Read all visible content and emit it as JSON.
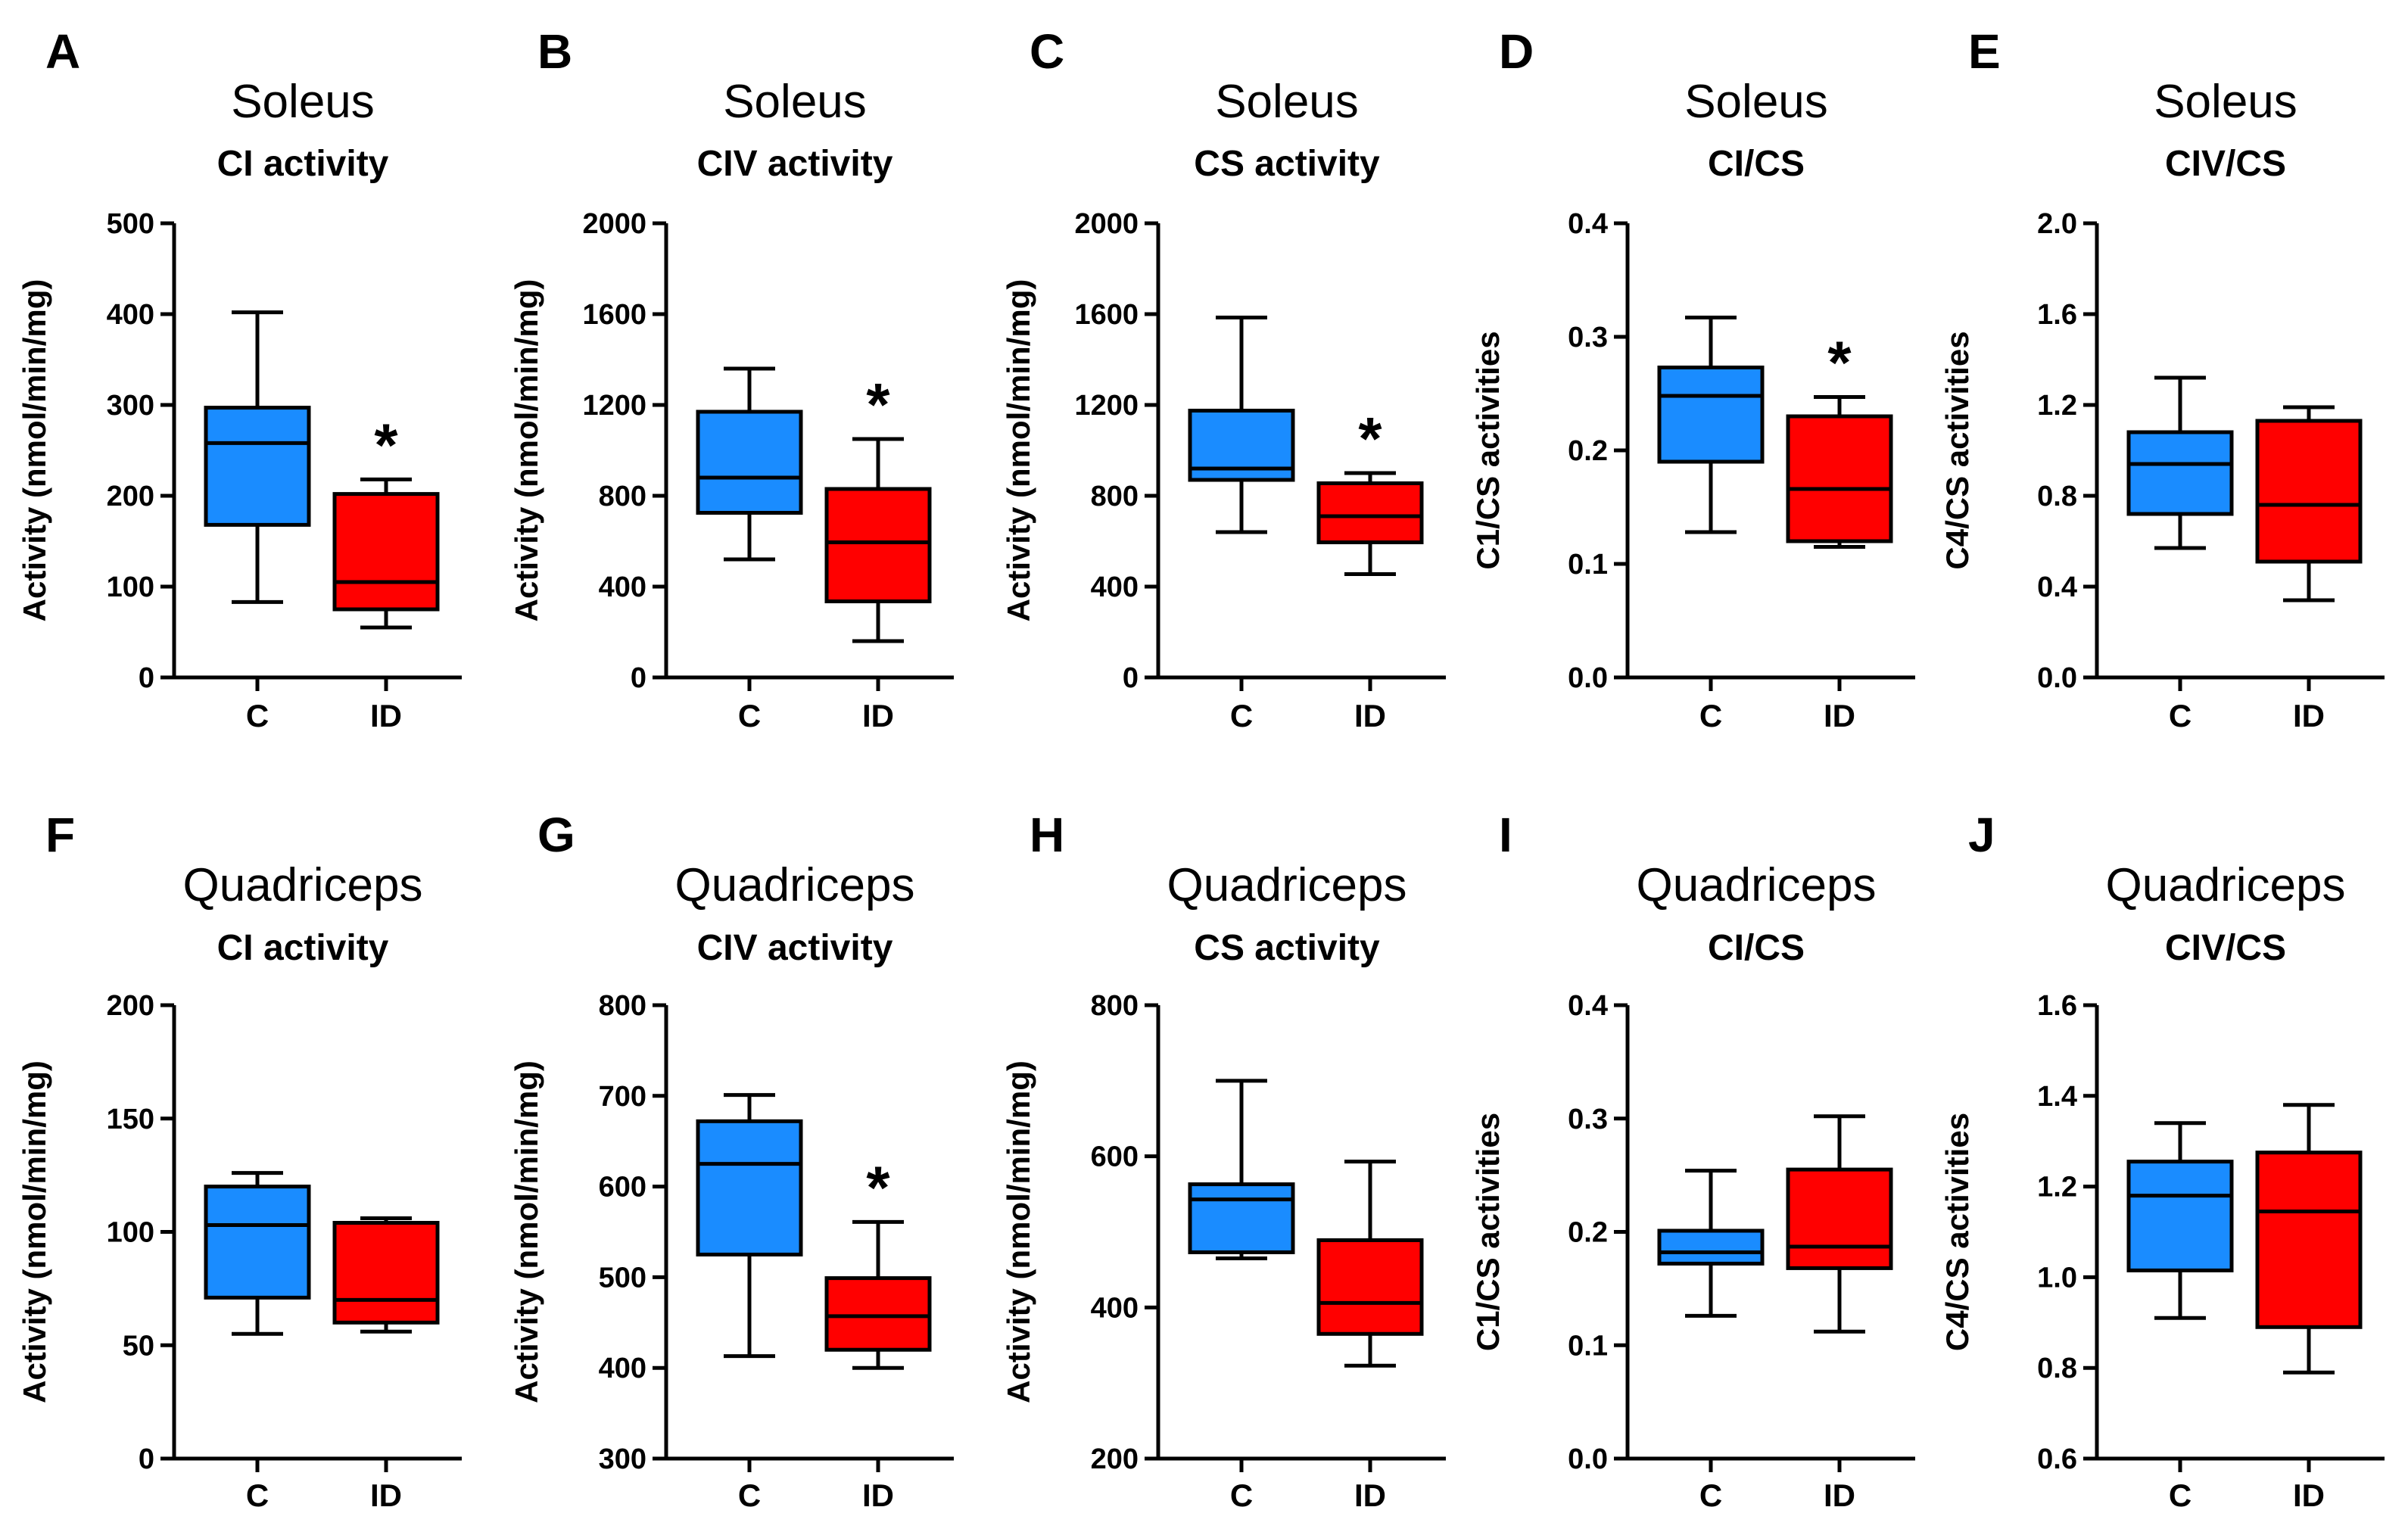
{
  "colors": {
    "C": "#1a8cff",
    "ID": "#ff0000",
    "line": "#000000"
  },
  "chart_data": [
    {
      "type": "box",
      "letter": "A",
      "title": "Soleus",
      "subtitle": "CI activity",
      "ylabel": "Activity (nmol/min/mg)",
      "ylim": [
        0,
        500
      ],
      "yticks": [
        "0",
        "100",
        "200",
        "300",
        "400",
        "500"
      ],
      "categories": [
        "C",
        "ID"
      ],
      "boxes": [
        {
          "min": 83,
          "q1": 168,
          "median": 258,
          "q3": 297,
          "max": 402
        },
        {
          "min": 55,
          "q1": 75,
          "median": 105,
          "q3": 202,
          "max": 218
        }
      ],
      "significance": [
        "",
        "*"
      ]
    },
    {
      "type": "box",
      "letter": "B",
      "title": "Soleus",
      "subtitle": "CIV activity",
      "ylabel": "Activity (nmol/min/mg)",
      "ylim": [
        0,
        2000
      ],
      "yticks": [
        "0",
        "400",
        "800",
        "1200",
        "1600",
        "2000"
      ],
      "categories": [
        "C",
        "ID"
      ],
      "boxes": [
        {
          "min": 520,
          "q1": 725,
          "median": 880,
          "q3": 1170,
          "max": 1360
        },
        {
          "min": 160,
          "q1": 335,
          "median": 595,
          "q3": 830,
          "max": 1050
        }
      ],
      "significance": [
        "",
        "*"
      ]
    },
    {
      "type": "box",
      "letter": "C",
      "title": "Soleus",
      "subtitle": "CS activity",
      "ylabel": "Activity (nmol/min/mg)",
      "ylim": [
        0,
        2000
      ],
      "yticks": [
        "0",
        "400",
        "800",
        "1200",
        "1600",
        "2000"
      ],
      "categories": [
        "C",
        "ID"
      ],
      "boxes": [
        {
          "min": 640,
          "q1": 870,
          "median": 920,
          "q3": 1175,
          "max": 1585
        },
        {
          "min": 455,
          "q1": 595,
          "median": 710,
          "q3": 855,
          "max": 900
        }
      ],
      "significance": [
        "",
        "*"
      ]
    },
    {
      "type": "box",
      "letter": "D",
      "title": "Soleus",
      "subtitle": "CI/CS",
      "ylabel": "C1/CS activities",
      "ylim": [
        0,
        0.4
      ],
      "yticks": [
        "0.0",
        "0.1",
        "0.2",
        "0.3",
        "0.4"
      ],
      "categories": [
        "C",
        "ID"
      ],
      "boxes": [
        {
          "min": 0.128,
          "q1": 0.19,
          "median": 0.248,
          "q3": 0.273,
          "max": 0.317
        },
        {
          "min": 0.115,
          "q1": 0.12,
          "median": 0.166,
          "q3": 0.23,
          "max": 0.247
        }
      ],
      "significance": [
        "",
        "*"
      ]
    },
    {
      "type": "box",
      "letter": "E",
      "title": "Soleus",
      "subtitle": "CIV/CS",
      "ylabel": "C4/CS activities",
      "ylim": [
        0,
        2.0
      ],
      "yticks": [
        "0.0",
        "0.4",
        "0.8",
        "1.2",
        "1.6",
        "2.0"
      ],
      "categories": [
        "C",
        "ID"
      ],
      "boxes": [
        {
          "min": 0.57,
          "q1": 0.72,
          "median": 0.94,
          "q3": 1.08,
          "max": 1.32
        },
        {
          "min": 0.34,
          "q1": 0.51,
          "median": 0.76,
          "q3": 1.13,
          "max": 1.19
        }
      ],
      "significance": [
        "",
        ""
      ]
    },
    {
      "type": "box",
      "letter": "F",
      "title": "Quadriceps",
      "subtitle": "CI activity",
      "ylabel": "Activity (nmol/min/mg)",
      "ylim": [
        0,
        200
      ],
      "yticks": [
        "0",
        "50",
        "100",
        "150",
        "200"
      ],
      "categories": [
        "C",
        "ID"
      ],
      "boxes": [
        {
          "min": 55,
          "q1": 71,
          "median": 103,
          "q3": 120,
          "max": 126
        },
        {
          "min": 56,
          "q1": 60,
          "median": 70,
          "q3": 104,
          "max": 106
        }
      ],
      "significance": [
        "",
        ""
      ]
    },
    {
      "type": "box",
      "letter": "G",
      "title": "Quadriceps",
      "subtitle": "CIV activity",
      "ylabel": "Activity (nmol/min/mg)",
      "ylim": [
        300,
        800
      ],
      "yticks": [
        "300",
        "400",
        "500",
        "600",
        "700",
        "800"
      ],
      "categories": [
        "C",
        "ID"
      ],
      "boxes": [
        {
          "min": 413,
          "q1": 525,
          "median": 625,
          "q3": 672,
          "max": 701
        },
        {
          "min": 400,
          "q1": 420,
          "median": 457,
          "q3": 499,
          "max": 561
        }
      ],
      "significance": [
        "",
        "*"
      ]
    },
    {
      "type": "box",
      "letter": "H",
      "title": "Quadriceps",
      "subtitle": "CS activity",
      "ylabel": "Activity (nmol/min/mg)",
      "ylim": [
        200,
        800
      ],
      "yticks": [
        "200",
        "400",
        "600",
        "800"
      ],
      "categories": [
        "C",
        "ID"
      ],
      "boxes": [
        {
          "min": 465,
          "q1": 473,
          "median": 543,
          "q3": 563,
          "max": 700
        },
        {
          "min": 323,
          "q1": 365,
          "median": 406,
          "q3": 489,
          "max": 593
        }
      ],
      "significance": [
        "",
        ""
      ]
    },
    {
      "type": "box",
      "letter": "I",
      "title": "Quadriceps",
      "subtitle": "CI/CS",
      "ylabel": "C1/CS activities",
      "ylim": [
        0,
        0.4
      ],
      "yticks": [
        "0.0",
        "0.1",
        "0.2",
        "0.3",
        "0.4"
      ],
      "categories": [
        "C",
        "ID"
      ],
      "boxes": [
        {
          "min": 0.126,
          "q1": 0.172,
          "median": 0.182,
          "q3": 0.201,
          "max": 0.254
        },
        {
          "min": 0.112,
          "q1": 0.168,
          "median": 0.187,
          "q3": 0.255,
          "max": 0.302
        }
      ],
      "significance": [
        "",
        ""
      ]
    },
    {
      "type": "box",
      "letter": "J",
      "title": "Quadriceps",
      "subtitle": "CIV/CS",
      "ylabel": "C4/CS activities",
      "ylim": [
        0.6,
        1.6
      ],
      "yticks": [
        "0.6",
        "0.8",
        "1.0",
        "1.2",
        "1.4",
        "1.6"
      ],
      "categories": [
        "C",
        "ID"
      ],
      "boxes": [
        {
          "min": 0.91,
          "q1": 1.015,
          "median": 1.18,
          "q3": 1.255,
          "max": 1.34
        },
        {
          "min": 0.79,
          "q1": 0.89,
          "median": 1.145,
          "q3": 1.275,
          "max": 1.38
        }
      ],
      "significance": [
        "",
        ""
      ]
    }
  ]
}
